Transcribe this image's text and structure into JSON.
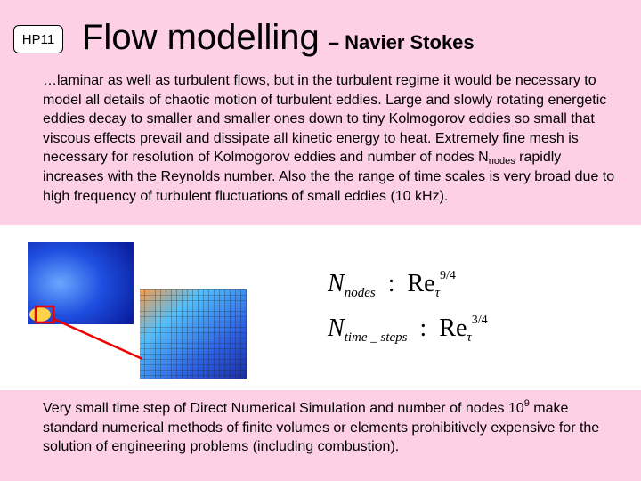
{
  "badge": "HP11",
  "title": {
    "main": "Flow modelling",
    "sub": "– Navier Stokes"
  },
  "intro": {
    "before": "…laminar as well as turbulent flows, but in the turbulent regime it would be necessary to model all details of chaotic motion of turbulent eddies. Large and slowly rotating energetic eddies  decay to smaller and smaller ones down to tiny Kolmogorov eddies so small that viscous effects prevail and dissipate all kinetic energy to heat. Extremely fine mesh is necessary for resolution of Kolmogorov eddies and number of nodes N",
    "sub": "nodes",
    "after": " rapidly increases with the Reynolds number. Also the the range of time scales is very broad due to high frequency of turbulent fluctuations of small eddies (10 kHz)."
  },
  "formulas": [
    {
      "lhs": "N",
      "lhs_sub": "nodes",
      "sep": ":",
      "rhs": "Re",
      "rhs_sub": "τ",
      "rhs_sup": "9/4"
    },
    {
      "lhs": "N",
      "lhs_sub": "time _ steps",
      "sep": ":",
      "rhs": "Re",
      "rhs_sub": "τ",
      "rhs_sup": "3/4"
    }
  ],
  "footer": {
    "before": "Very small time step of Direct Numerical Simulation and number of nodes 10",
    "sup": "9",
    "after": " make standard numerical methods of finite volumes or elements prohibitively expensive for the solution of engineering problems (including combustion)."
  }
}
